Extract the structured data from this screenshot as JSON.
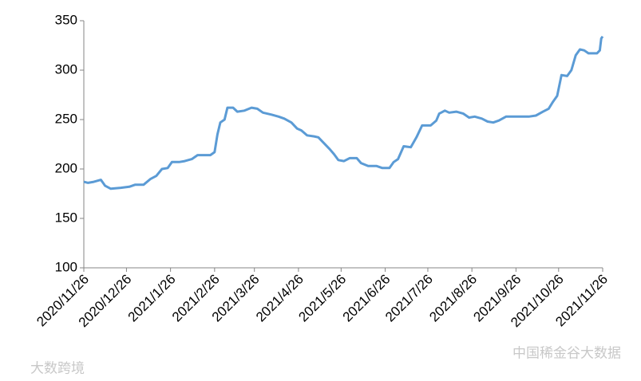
{
  "chart_data": {
    "type": "line",
    "x": [
      "2020/11/26",
      "2020/11/29",
      "2020/12/3",
      "2020/12/8",
      "2020/12/11",
      "2020/12/15",
      "2020/12/22",
      "2020/12/28",
      "2021/1/1",
      "2021/1/7",
      "2021/1/12",
      "2021/1/16",
      "2021/1/20",
      "2021/1/24",
      "2021/1/27",
      "2021/2/1",
      "2021/2/5",
      "2021/2/10",
      "2021/2/14",
      "2021/2/19",
      "2021/2/23",
      "2021/2/26",
      "2021/2/28",
      "2021/3/2",
      "2021/3/5",
      "2021/3/7",
      "2021/3/11",
      "2021/3/14",
      "2021/3/19",
      "2021/3/24",
      "2021/3/28",
      "2021/4/1",
      "2021/4/7",
      "2021/4/12",
      "2021/4/16",
      "2021/4/21",
      "2021/4/25",
      "2021/4/28",
      "2021/5/2",
      "2021/5/7",
      "2021/5/10",
      "2021/5/14",
      "2021/5/18",
      "2021/5/21",
      "2021/5/24",
      "2021/5/28",
      "2021/6/1",
      "2021/6/6",
      "2021/6/9",
      "2021/6/14",
      "2021/6/20",
      "2021/6/24",
      "2021/6/29",
      "2021/7/2",
      "2021/7/5",
      "2021/7/9",
      "2021/7/14",
      "2021/7/18",
      "2021/7/22",
      "2021/7/28",
      "2021/8/1",
      "2021/8/3",
      "2021/8/7",
      "2021/8/10",
      "2021/8/15",
      "2021/8/20",
      "2021/8/24",
      "2021/8/28",
      "2021/9/2",
      "2021/9/6",
      "2021/9/10",
      "2021/9/14",
      "2021/9/19",
      "2021/9/26",
      "2021/9/30",
      "2021/10/5",
      "2021/10/10",
      "2021/10/15",
      "2021/10/19",
      "2021/10/22",
      "2021/10/25",
      "2021/10/28",
      "2021/11/1",
      "2021/11/4",
      "2021/11/7",
      "2021/11/10",
      "2021/11/13",
      "2021/11/16",
      "2021/11/22",
      "2021/11/24",
      "2021/11/25",
      "2021/11/26"
    ],
    "values": [
      187,
      186,
      187,
      189,
      183,
      180,
      181,
      182,
      184,
      184,
      190,
      193,
      200,
      201,
      207,
      207,
      208,
      210,
      214,
      214,
      214,
      217,
      235,
      247,
      250,
      262,
      262,
      258,
      259,
      262,
      261,
      257,
      255,
      253,
      251,
      247,
      241,
      239,
      234,
      233,
      232,
      226,
      220,
      215,
      209,
      208,
      211,
      211,
      206,
      203,
      203,
      201,
      201,
      207,
      210,
      223,
      222,
      232,
      244,
      244,
      249,
      256,
      259,
      257,
      258,
      256,
      252,
      253,
      251,
      248,
      247,
      249,
      253,
      253,
      253,
      253,
      254,
      258,
      261,
      268,
      274,
      295,
      294,
      300,
      315,
      321,
      320,
      317,
      317,
      320,
      332,
      334
    ],
    "color": "#5b9bd5",
    "xlim": [
      "2020/11/26",
      "2021/11/26"
    ],
    "xticks": [
      "2020/11/26",
      "2020/12/26",
      "2021/1/26",
      "2021/2/26",
      "2021/3/26",
      "2021/4/26",
      "2021/5/26",
      "2021/6/26",
      "2021/7/26",
      "2021/8/26",
      "2021/9/26",
      "2021/10/26",
      "2021/11/26"
    ],
    "ylim": [
      100,
      350
    ],
    "yticks": [
      100,
      150,
      200,
      250,
      300,
      350
    ],
    "grid": false,
    "watermarks": [
      "中国稀金谷大数据",
      "大数跨境"
    ]
  }
}
